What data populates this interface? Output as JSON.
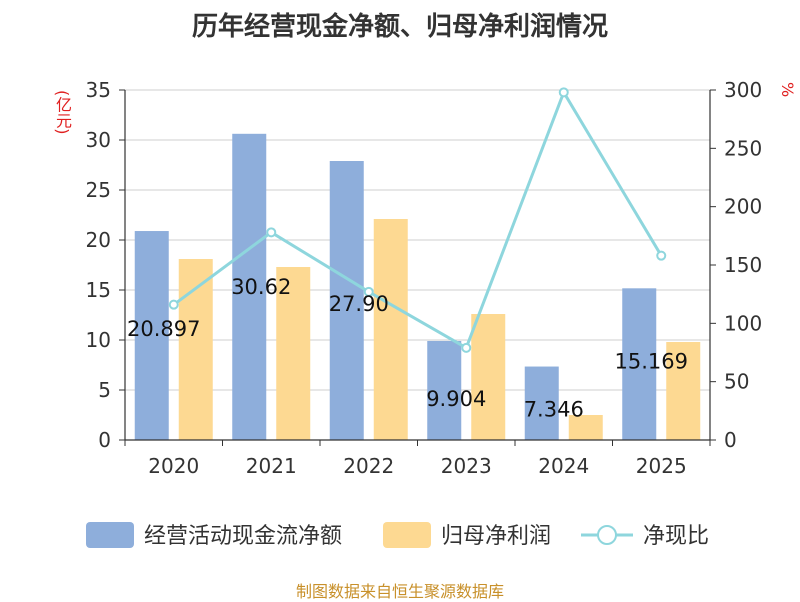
{
  "chart_data": {
    "type": "bar",
    "title": "历年经营现金净额、归母净利润情况",
    "categories": [
      "2020",
      "2021",
      "2022",
      "2023",
      "2024",
      "2025"
    ],
    "series": [
      {
        "name": "经营活动现金流净额",
        "type": "bar",
        "axis": "left",
        "color": "#8eaedb",
        "values": [
          20.897,
          30.62,
          27.9,
          9.904,
          7.346,
          15.169
        ]
      },
      {
        "name": "归母净利润",
        "type": "bar",
        "axis": "left",
        "color": "#fdd992",
        "values": [
          18.1,
          17.3,
          22.1,
          12.6,
          2.5,
          9.8
        ]
      },
      {
        "name": "净现比",
        "type": "line",
        "axis": "right",
        "color": "#8ed6dd",
        "values": [
          116,
          178,
          127,
          79,
          298,
          158
        ]
      }
    ],
    "data_labels": [
      "20.897",
      "30.62",
      "27.90",
      "9.904",
      "7.346",
      "15.169"
    ],
    "ylabel_left": "(亿元)",
    "ylabel_right": "%",
    "ylim_left": [
      0,
      35
    ],
    "ylim_right": [
      0,
      300
    ],
    "yticks_left": [
      "0",
      "5",
      "10",
      "15",
      "20",
      "25",
      "30",
      "35"
    ],
    "yticks_right": [
      "0",
      "50",
      "100",
      "150",
      "200",
      "250",
      "300"
    ],
    "grid": true,
    "legend_position": "bottom"
  },
  "source": "制图数据来自恒生聚源数据库"
}
